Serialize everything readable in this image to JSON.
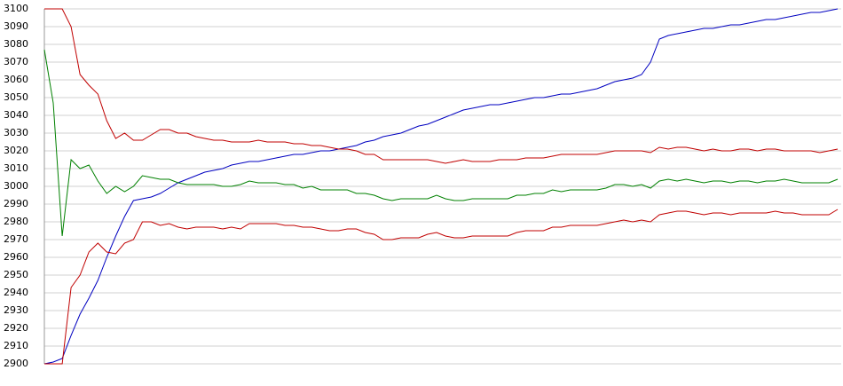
{
  "chart_data": {
    "type": "line",
    "categories": [
      null,
      null,
      null,
      null,
      null,
      null,
      null,
      null,
      null,
      null,
      null,
      null,
      null,
      null,
      null,
      null,
      null,
      null,
      null,
      null,
      null,
      null,
      null,
      null,
      null,
      null,
      null,
      null,
      null,
      null,
      null,
      null,
      null,
      null,
      null,
      null,
      null,
      null,
      null,
      null,
      null,
      null,
      null,
      null,
      null,
      null,
      null,
      null,
      null,
      null,
      null,
      null,
      null,
      null,
      null,
      null,
      null,
      null,
      null,
      null,
      null,
      null,
      null,
      null,
      null,
      null,
      null,
      null,
      null,
      null,
      null,
      null,
      null,
      null,
      null,
      null,
      null,
      null,
      null,
      null,
      null,
      null,
      null,
      null,
      null,
      null,
      null,
      null,
      null,
      null
    ],
    "series": [
      {
        "color": "#0000c0",
        "values": [
          2900,
          2901,
          2903,
          2916,
          2928,
          2937,
          2947,
          2960,
          2972,
          2983,
          2992,
          2993,
          2994,
          2996,
          2999,
          3002,
          3004,
          3006,
          3008,
          3009,
          3010,
          3012,
          3013,
          3014,
          3014,
          3015,
          3016,
          3017,
          3018,
          3018,
          3019,
          3020,
          3020,
          3021,
          3022,
          3023,
          3025,
          3026,
          3028,
          3029,
          3030,
          3032,
          3034,
          3035,
          3037,
          3039,
          3041,
          3043,
          3044,
          3045,
          3046,
          3046,
          3047,
          3048,
          3049,
          3050,
          3050,
          3051,
          3052,
          3052,
          3053,
          3054,
          3055,
          3057,
          3059,
          3060,
          3061,
          3063,
          3070,
          3083,
          3085,
          3086,
          3087,
          3088,
          3089,
          3089,
          3090,
          3091,
          3091,
          3092,
          3093,
          3094,
          3094,
          3095,
          3096,
          3097,
          3098,
          3098,
          3099,
          3100
        ]
      },
      {
        "color": "#c00000",
        "values": [
          3100,
          3100,
          3100,
          3090,
          3063,
          3057,
          3052,
          3037,
          3027,
          3030,
          3026,
          3026,
          3029,
          3032,
          3032,
          3030,
          3030,
          3028,
          3027,
          3026,
          3026,
          3025,
          3025,
          3025,
          3026,
          3025,
          3025,
          3025,
          3024,
          3024,
          3023,
          3023,
          3022,
          3021,
          3021,
          3020,
          3018,
          3018,
          3015,
          3015,
          3015,
          3015,
          3015,
          3015,
          3014,
          3013,
          3014,
          3015,
          3014,
          3014,
          3014,
          3015,
          3015,
          3015,
          3016,
          3016,
          3016,
          3017,
          3018,
          3018,
          3018,
          3018,
          3018,
          3019,
          3020,
          3020,
          3020,
          3020,
          3019,
          3022,
          3021,
          3022,
          3022,
          3021,
          3020,
          3021,
          3020,
          3020,
          3021,
          3021,
          3020,
          3021,
          3021,
          3020,
          3020,
          3020,
          3020,
          3019,
          3020,
          3021
        ]
      },
      {
        "color": "#008000",
        "values": [
          3077,
          3047,
          2972,
          3015,
          3010,
          3012,
          3003,
          2996,
          3000,
          2997,
          3000,
          3006,
          3005,
          3004,
          3004,
          3002,
          3001,
          3001,
          3001,
          3001,
          3000,
          3000,
          3001,
          3003,
          3002,
          3002,
          3002,
          3001,
          3001,
          2999,
          3000,
          2998,
          2998,
          2998,
          2998,
          2996,
          2996,
          2995,
          2993,
          2992,
          2993,
          2993,
          2993,
          2993,
          2995,
          2993,
          2992,
          2992,
          2993,
          2993,
          2993,
          2993,
          2993,
          2995,
          2995,
          2996,
          2996,
          2998,
          2997,
          2998,
          2998,
          2998,
          2998,
          2999,
          3001,
          3001,
          3000,
          3001,
          2999,
          3003,
          3004,
          3003,
          3004,
          3003,
          3002,
          3003,
          3003,
          3002,
          3003,
          3003,
          3002,
          3003,
          3003,
          3004,
          3003,
          3002,
          3002,
          3002,
          3002,
          3004
        ]
      },
      {
        "color": "#c00000",
        "values": [
          2900,
          2900,
          2900,
          2943,
          2950,
          2963,
          2968,
          2963,
          2962,
          2968,
          2970,
          2980,
          2980,
          2978,
          2979,
          2977,
          2976,
          2977,
          2977,
          2977,
          2976,
          2977,
          2976,
          2979,
          2979,
          2979,
          2979,
          2978,
          2978,
          2977,
          2977,
          2976,
          2975,
          2975,
          2976,
          2976,
          2974,
          2973,
          2970,
          2970,
          2971,
          2971,
          2971,
          2973,
          2974,
          2972,
          2971,
          2971,
          2972,
          2972,
          2972,
          2972,
          2972,
          2974,
          2975,
          2975,
          2975,
          2977,
          2977,
          2978,
          2978,
          2978,
          2978,
          2979,
          2980,
          2981,
          2980,
          2981,
          2980,
          2984,
          2985,
          2986,
          2986,
          2985,
          2984,
          2985,
          2985,
          2984,
          2985,
          2985,
          2985,
          2985,
          2986,
          2985,
          2985,
          2984,
          2984,
          2984,
          2984,
          2987
        ]
      }
    ],
    "ylim": [
      2900,
      3100
    ],
    "yticks": [
      2900,
      2910,
      2920,
      2930,
      2940,
      2950,
      2960,
      2970,
      2980,
      2990,
      3000,
      3010,
      3020,
      3030,
      3040,
      3050,
      3060,
      3070,
      3080,
      3090,
      3100
    ],
    "grid": true
  }
}
